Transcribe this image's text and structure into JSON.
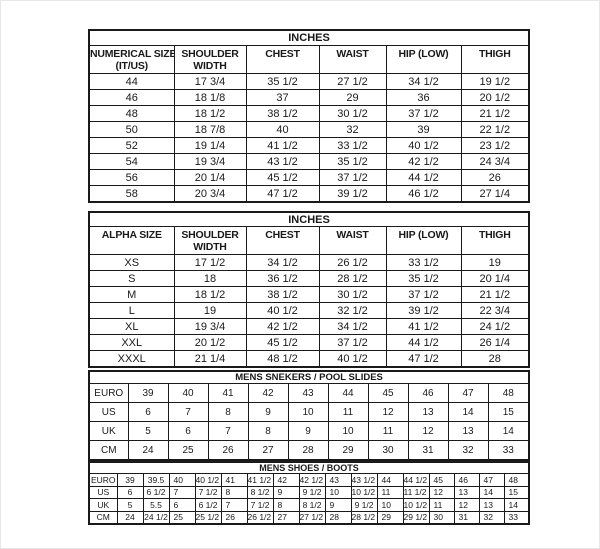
{
  "colors": {
    "background": "#ffffff",
    "grid": "#1a1a1a",
    "text": "#1a1a1a"
  },
  "tables": [
    {
      "name": "numerical-size-inches",
      "title": "INCHES",
      "columns": [
        [
          "NUMERICAL SIZE",
          "(IT/US)"
        ],
        [
          "SHOULDER",
          "WIDTH"
        ],
        [
          "CHEST"
        ],
        [
          "WAIST"
        ],
        [
          "HIP (LOW)"
        ],
        [
          "THIGH"
        ]
      ],
      "rows": [
        [
          "44",
          "17 3/4",
          "35 1/2",
          "27 1/2",
          "34 1/2",
          "19 1/2"
        ],
        [
          "46",
          "18 1/8",
          "37",
          "29",
          "36",
          "20 1/2"
        ],
        [
          "48",
          "18 1/2",
          "38 1/2",
          "30 1/2",
          "37 1/2",
          "21 1/2"
        ],
        [
          "50",
          "18 7/8",
          "40",
          "32",
          "39",
          "22 1/2"
        ],
        [
          "52",
          "19 1/4",
          "41 1/2",
          "33 1/2",
          "40 1/2",
          "23 1/2"
        ],
        [
          "54",
          "19 3/4",
          "43 1/2",
          "35 1/2",
          "42 1/2",
          "24 3/4"
        ],
        [
          "56",
          "20 1/4",
          "45 1/2",
          "37 1/2",
          "44 1/2",
          "26"
        ],
        [
          "58",
          "20 3/4",
          "47 1/2",
          "39 1/2",
          "46 1/2",
          "27 1/4"
        ]
      ]
    },
    {
      "name": "alpha-size-inches",
      "title": "INCHES",
      "columns": [
        [
          "ALPHA SIZE"
        ],
        [
          "SHOULDER",
          "WIDTH"
        ],
        [
          "CHEST"
        ],
        [
          "WAIST"
        ],
        [
          "HIP (LOW)"
        ],
        [
          "THIGH"
        ]
      ],
      "rows": [
        [
          "XS",
          "17 1/2",
          "34 1/2",
          "26 1/2",
          "33 1/2",
          "19"
        ],
        [
          "S",
          "18",
          "36 1/2",
          "28 1/2",
          "35 1/2",
          "20 1/4"
        ],
        [
          "M",
          "18 1/2",
          "38 1/2",
          "30 1/2",
          "37 1/2",
          "21 1/2"
        ],
        [
          "L",
          "19",
          "40 1/2",
          "32 1/2",
          "39 1/2",
          "22 3/4"
        ],
        [
          "XL",
          "19 3/4",
          "42 1/2",
          "34 1/2",
          "41 1/2",
          "24 1/2"
        ],
        [
          "XXL",
          "20 1/2",
          "45 1/2",
          "37 1/2",
          "44 1/2",
          "26 1/4"
        ],
        [
          "XXXL",
          "21 1/4",
          "48 1/2",
          "40 1/2",
          "47 1/2",
          "28"
        ]
      ]
    },
    {
      "name": "mens-sneakers-pool-slides",
      "title": "MENS SNEKERS / POOL SLIDES",
      "rows": [
        [
          "EURO",
          "39",
          "40",
          "41",
          "42",
          "43",
          "44",
          "45",
          "46",
          "47",
          "48"
        ],
        [
          "US",
          "6",
          "7",
          "8",
          "9",
          "10",
          "11",
          "12",
          "13",
          "14",
          "15"
        ],
        [
          "UK",
          "5",
          "6",
          "7",
          "8",
          "9",
          "10",
          "11",
          "12",
          "13",
          "14"
        ],
        [
          "CM",
          "24",
          "25",
          "26",
          "27",
          "28",
          "29",
          "30",
          "31",
          "32",
          "33"
        ]
      ]
    },
    {
      "name": "mens-shoes-boots",
      "title": "MENS SHOES / BOOTS",
      "rows": [
        [
          "EURO",
          "39",
          "39.5",
          "40",
          "40 1/2",
          "41",
          "41 1/2",
          "42",
          "42 1/2",
          "43",
          "43 1/2",
          "44",
          "44 1/2",
          "45",
          "46",
          "47",
          "48"
        ],
        [
          "US",
          "6",
          "6 1/2",
          "7",
          "7 1/2",
          "8",
          "8 1/2",
          "9",
          "9 1/2",
          "10",
          "10 1/2",
          "11",
          "11 1/2",
          "12",
          "13",
          "14",
          "15"
        ],
        [
          "UK",
          "5",
          "5.5",
          "6",
          "6 1/2",
          "7",
          "7 1/2",
          "8",
          "8 1/2",
          "9",
          "9 1/2",
          "10",
          "10 1/2",
          "11",
          "12",
          "13",
          "14"
        ],
        [
          "CM",
          "24",
          "24 1/2",
          "25",
          "25 1/2",
          "26",
          "26 1/2",
          "27",
          "27 1/2",
          "28",
          "28 1/2",
          "29",
          "29 1/2",
          "30",
          "31",
          "32",
          "33"
        ]
      ]
    }
  ]
}
